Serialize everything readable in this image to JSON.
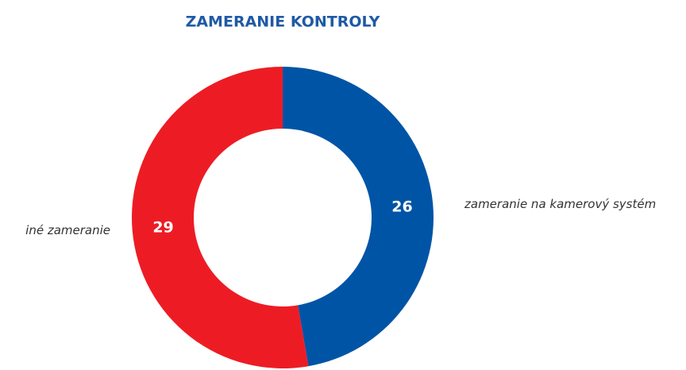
{
  "chart_data": {
    "type": "donut",
    "title": "ZAMERANIE KONTROLY",
    "categories": [
      "zameranie na kamerový systém",
      "iné zameranie"
    ],
    "values": [
      26,
      29
    ],
    "colors": [
      "#0054a6",
      "#ed1c24"
    ]
  }
}
